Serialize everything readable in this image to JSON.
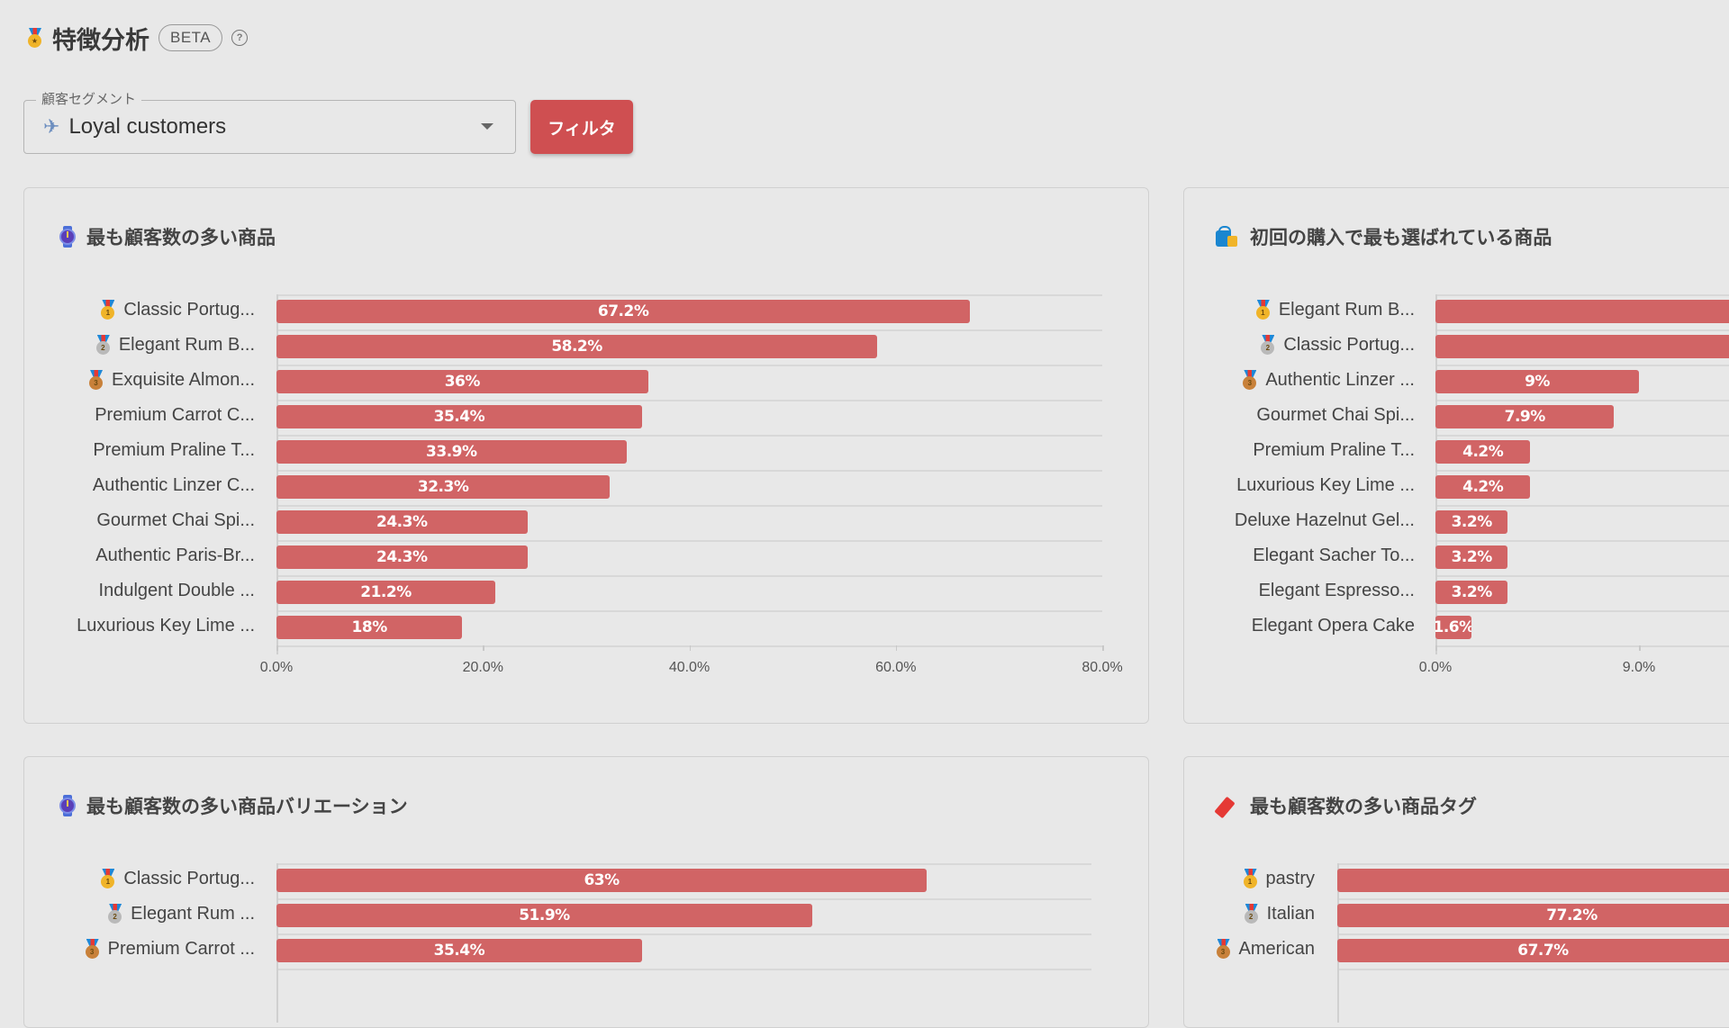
{
  "header": {
    "title": "特徴分析",
    "badge": "BETA",
    "help_icon": "question-circle-icon",
    "title_icon": "medal-icon"
  },
  "segment_filter": {
    "label": "顧客セグメント",
    "value": "Loyal customers",
    "value_icon": "airplane-icon",
    "filter_button": "フィルタ"
  },
  "colors": {
    "bar": "#d16465",
    "button": "#cf4f51",
    "background": "#e8e8e8"
  },
  "chart_data": [
    {
      "id": "top-products",
      "type": "bar",
      "orientation": "horizontal",
      "title": "最も顧客数の多い商品",
      "icon": "watch-icon",
      "categories": [
        "Classic Portug...",
        "Elegant Rum B...",
        "Exquisite Almon...",
        "Premium Carrot C...",
        "Premium Praline T...",
        "Authentic Linzer C...",
        "Gourmet Chai Spi...",
        "Authentic Paris-Br...",
        "Indulgent Double ...",
        "Luxurious Key Lime ..."
      ],
      "values": [
        67.2,
        58.2,
        36,
        35.4,
        33.9,
        32.3,
        24.3,
        24.3,
        21.2,
        18
      ],
      "labels": [
        "67.2%",
        "58.2%",
        "36%",
        "35.4%",
        "33.9%",
        "32.3%",
        "24.3%",
        "24.3%",
        "21.2%",
        "18%"
      ],
      "medals": [
        "gold",
        "silver",
        "bronze"
      ],
      "xticks": [
        "0.0%",
        "20.0%",
        "40.0%",
        "60.0%",
        "80.0%"
      ],
      "xlim": [
        0,
        80
      ],
      "grid": true
    },
    {
      "id": "first-purchase-products",
      "type": "bar",
      "orientation": "horizontal",
      "title": "初回の購入で最も選ばれている商品",
      "icon": "shopping-bag-icon",
      "categories": [
        "Elegant Rum B...",
        "Classic Portug...",
        "Authentic Linzer ...",
        "Gourmet Chai Spi...",
        "Premium Praline T...",
        "Luxurious Key Lime ...",
        "Deluxe Hazelnut Gel...",
        "Elegant Sacher To...",
        "Elegant Espresso...",
        "Elegant Opera Cake"
      ],
      "values": [
        null,
        null,
        9,
        7.9,
        4.2,
        4.2,
        3.2,
        3.2,
        3.2,
        1.6
      ],
      "labels": [
        "",
        "",
        "9%",
        "7.9%",
        "4.2%",
        "4.2%",
        "3.2%",
        "3.2%",
        "3.2%",
        "1.6%"
      ],
      "medals": [
        "gold",
        "silver",
        "bronze"
      ],
      "xticks": [
        "0.0%",
        "9.0%"
      ],
      "xlim": [
        0,
        18
      ],
      "grid": true,
      "note": "first two bars extend beyond visible area"
    },
    {
      "id": "top-variations",
      "type": "bar",
      "orientation": "horizontal",
      "title": "最も顧客数の多い商品バリエーション",
      "icon": "watch-icon",
      "categories": [
        "Classic Portug...",
        "Elegant Rum ...",
        "Premium Carrot ..."
      ],
      "values": [
        63,
        51.9,
        35.4
      ],
      "labels": [
        "63%",
        "51.9%",
        "35.4%"
      ],
      "medals": [
        "gold",
        "silver",
        "bronze"
      ],
      "xlim": [
        0,
        80
      ],
      "grid": true
    },
    {
      "id": "top-tags",
      "type": "bar",
      "orientation": "horizontal",
      "title": "最も顧客数の多い商品タグ",
      "icon": "tag-icon",
      "categories": [
        "pastry",
        "Italian",
        "American"
      ],
      "values": [
        null,
        77.2,
        67.7
      ],
      "labels": [
        "",
        "77.2%",
        "67.7%"
      ],
      "medals": [
        "gold",
        "silver",
        "bronze"
      ],
      "xlim": [
        0,
        100
      ],
      "grid": true
    }
  ]
}
